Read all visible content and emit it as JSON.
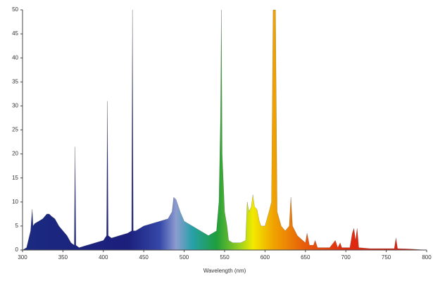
{
  "chart_data": {
    "type": "area",
    "x_label": "Wavelength (nm)",
    "x": [
      300,
      305,
      310,
      312,
      313,
      315,
      320,
      325,
      330,
      333,
      336,
      340,
      345,
      350,
      355,
      360,
      364,
      365,
      366,
      370,
      380,
      390,
      400,
      404,
      405,
      406,
      410,
      420,
      430,
      435,
      436,
      437,
      440,
      450,
      460,
      470,
      480,
      485,
      487,
      490,
      495,
      500,
      510,
      520,
      530,
      540,
      543,
      545,
      546,
      547,
      550,
      553,
      555,
      560,
      570,
      576,
      578,
      580,
      583,
      585,
      587,
      590,
      593,
      595,
      600,
      605,
      608,
      610,
      613,
      615,
      620,
      625,
      630,
      632,
      634,
      640,
      650,
      652,
      655,
      660,
      662,
      665,
      680,
      687,
      690,
      693,
      695,
      705,
      708,
      710,
      712,
      714,
      716,
      730,
      750,
      760,
      762,
      764,
      780,
      800
    ],
    "values": [
      0,
      0.5,
      4,
      8.5,
      5,
      5.5,
      6,
      6.5,
      7.5,
      7.5,
      7,
      6.5,
      5,
      4,
      3,
      1.5,
      1,
      21.5,
      1,
      0.5,
      1,
      1.5,
      2,
      3,
      31,
      3,
      2.5,
      3,
      3.5,
      4,
      50,
      4,
      4,
      5,
      5.5,
      6,
      6.5,
      8,
      11,
      10.5,
      8,
      6,
      5,
      4,
      3,
      4,
      10,
      28,
      50,
      20,
      8,
      5,
      2,
      1.5,
      1.5,
      2,
      10,
      8,
      9,
      11.5,
      9,
      8.5,
      6,
      5,
      5,
      8,
      10,
      50,
      50,
      8,
      5,
      4,
      5,
      11,
      5,
      3,
      1.5,
      3.5,
      1,
      1,
      2,
      0.5,
      0.5,
      2,
      0.5,
      1.5,
      0.5,
      0.5,
      3.5,
      4.5,
      2,
      4.5,
      0.5,
      0.3,
      0.3,
      0.3,
      2.5,
      0.3,
      0.2,
      0
    ],
    "xlim": [
      300,
      800
    ],
    "ylim": [
      0,
      50
    ],
    "xticks": [
      300,
      350,
      400,
      450,
      500,
      550,
      600,
      650,
      700,
      750,
      800
    ],
    "yticks": [
      0,
      5,
      10,
      15,
      20,
      25,
      30,
      35,
      40,
      45,
      50
    ]
  }
}
